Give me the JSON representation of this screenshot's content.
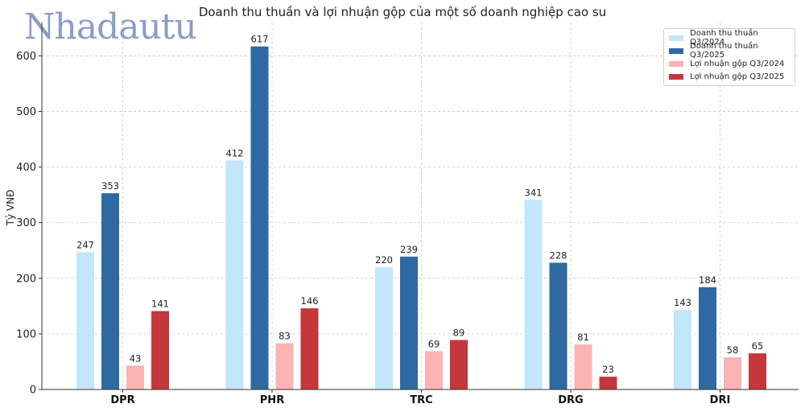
{
  "watermark": "Nhadautu",
  "chart_data": {
    "type": "bar",
    "title": "Doanh thu thuần và lợi nhuận gộp của một số doanh nghiệp cao su",
    "ylabel": "Tỷ VNĐ",
    "xlabel": "",
    "categories": [
      "DPR",
      "PHR",
      "TRC",
      "DRG",
      "DRI"
    ],
    "ylim": [
      0,
      660
    ],
    "yticks": [
      0,
      100,
      200,
      300,
      400,
      500,
      600
    ],
    "grid": true,
    "legend_position": "top-right",
    "series": [
      {
        "name": "Doanh thu thuần Q3/2024",
        "color": "#c2e6fb",
        "values": [
          247,
          412,
          220,
          341,
          143
        ]
      },
      {
        "name": "Doanh thu thuần Q3/2025",
        "color": "#2e6aa1",
        "values": [
          353,
          617,
          239,
          228,
          184
        ]
      },
      {
        "name": "Lợi nhuận gộp Q3/2024",
        "color": "#fbb3b3",
        "values": [
          43,
          83,
          69,
          81,
          58
        ]
      },
      {
        "name": "Lợi nhuận gộp Q3/2025",
        "color": "#c4373c",
        "values": [
          141,
          146,
          89,
          23,
          65
        ]
      }
    ]
  }
}
